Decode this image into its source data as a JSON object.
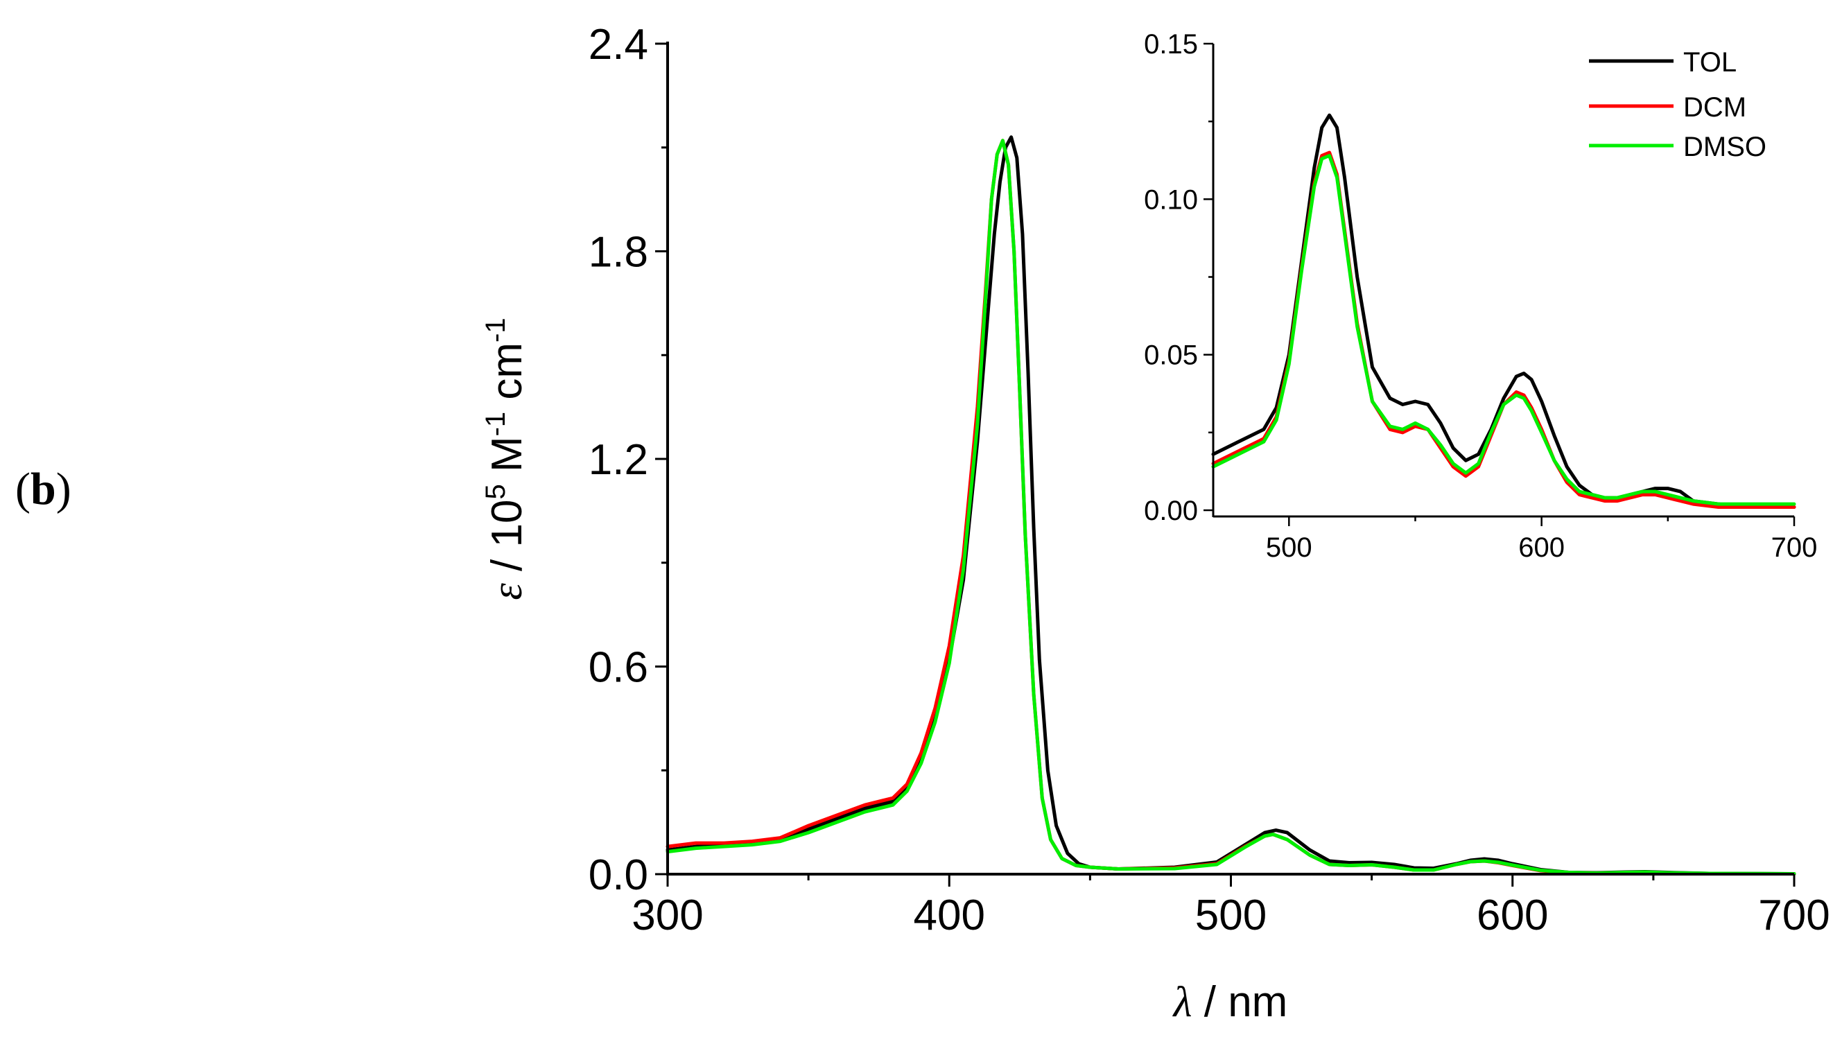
{
  "panel_label": {
    "open": "(",
    "letter": "b",
    "close": ")"
  },
  "colors": {
    "TOL": "#000000",
    "DCM": "#ff0000",
    "DMSO": "#00ee00",
    "axis": "#000000",
    "background": "#ffffff"
  },
  "chart_data": [
    {
      "type": "line",
      "role": "main",
      "title": "",
      "xlabel": {
        "symbol": "λ",
        "rest": " / nm"
      },
      "ylabel": {
        "symbol": "ε",
        "before_sup1": " / 10",
        "sup1": "5",
        "mid": " M",
        "sup2": "-1",
        "after": " cm",
        "sup3": "-1"
      },
      "xlim": [
        300,
        700
      ],
      "ylim": [
        0.0,
        2.4
      ],
      "xticks": [
        300,
        400,
        500,
        600,
        700
      ],
      "xtick_labels": [
        "300",
        "400",
        "500",
        "600",
        "700"
      ],
      "yticks": [
        0.0,
        0.6,
        1.2,
        1.8,
        2.4
      ],
      "ytick_labels": [
        "0.0",
        "0.6",
        "1.2",
        "1.8",
        "2.4"
      ],
      "series": [
        {
          "name": "TOL",
          "x": [
            300,
            310,
            320,
            330,
            340,
            350,
            360,
            370,
            380,
            385,
            390,
            395,
            400,
            405,
            410,
            413,
            416,
            418,
            420,
            422,
            424,
            426,
            428,
            430,
            432,
            435,
            438,
            442,
            446,
            450,
            460,
            480,
            495,
            505,
            512,
            516,
            520,
            528,
            535,
            542,
            550,
            558,
            565,
            572,
            580,
            585,
            590,
            595,
            600,
            610,
            620,
            630,
            640,
            647,
            655,
            670,
            700
          ],
          "y": [
            0.07,
            0.08,
            0.085,
            0.09,
            0.1,
            0.13,
            0.16,
            0.19,
            0.21,
            0.25,
            0.33,
            0.45,
            0.62,
            0.85,
            1.25,
            1.55,
            1.85,
            2.0,
            2.1,
            2.13,
            2.07,
            1.85,
            1.45,
            1.0,
            0.62,
            0.3,
            0.14,
            0.06,
            0.03,
            0.02,
            0.015,
            0.02,
            0.035,
            0.085,
            0.12,
            0.127,
            0.12,
            0.07,
            0.038,
            0.033,
            0.034,
            0.028,
            0.018,
            0.017,
            0.03,
            0.04,
            0.044,
            0.04,
            0.03,
            0.013,
            0.005,
            0.004,
            0.006,
            0.007,
            0.005,
            0.002,
            0.001
          ]
        },
        {
          "name": "DCM",
          "x": [
            300,
            310,
            320,
            330,
            340,
            350,
            360,
            370,
            380,
            385,
            390,
            395,
            400,
            405,
            410,
            413,
            415,
            417,
            419,
            421,
            423,
            425,
            427,
            430,
            433,
            436,
            440,
            445,
            450,
            460,
            480,
            495,
            505,
            512,
            515,
            520,
            528,
            535,
            542,
            550,
            558,
            565,
            572,
            580,
            585,
            590,
            595,
            600,
            610,
            620,
            630,
            640,
            647,
            655,
            670,
            700
          ],
          "y": [
            0.08,
            0.09,
            0.09,
            0.095,
            0.105,
            0.14,
            0.17,
            0.2,
            0.22,
            0.26,
            0.35,
            0.48,
            0.66,
            0.92,
            1.35,
            1.7,
            1.95,
            2.08,
            2.12,
            2.05,
            1.8,
            1.4,
            0.98,
            0.52,
            0.22,
            0.1,
            0.045,
            0.025,
            0.02,
            0.015,
            0.018,
            0.03,
            0.08,
            0.11,
            0.115,
            0.1,
            0.055,
            0.028,
            0.025,
            0.027,
            0.02,
            0.012,
            0.012,
            0.028,
            0.036,
            0.038,
            0.033,
            0.025,
            0.01,
            0.004,
            0.003,
            0.004,
            0.005,
            0.003,
            0.001,
            0.001
          ]
        },
        {
          "name": "DMSO",
          "x": [
            300,
            310,
            320,
            330,
            340,
            350,
            360,
            370,
            380,
            385,
            390,
            395,
            400,
            405,
            410,
            413,
            415,
            417,
            419,
            421,
            423,
            425,
            427,
            430,
            433,
            436,
            440,
            445,
            450,
            460,
            480,
            495,
            505,
            512,
            515,
            520,
            528,
            535,
            542,
            550,
            558,
            565,
            572,
            580,
            585,
            590,
            595,
            600,
            610,
            620,
            630,
            640,
            647,
            655,
            670,
            700
          ],
          "y": [
            0.065,
            0.075,
            0.08,
            0.085,
            0.095,
            0.12,
            0.15,
            0.18,
            0.2,
            0.24,
            0.32,
            0.44,
            0.61,
            0.88,
            1.3,
            1.68,
            1.95,
            2.08,
            2.12,
            2.05,
            1.8,
            1.4,
            0.98,
            0.52,
            0.22,
            0.1,
            0.045,
            0.025,
            0.02,
            0.015,
            0.016,
            0.028,
            0.078,
            0.11,
            0.115,
            0.1,
            0.055,
            0.028,
            0.025,
            0.027,
            0.02,
            0.012,
            0.012,
            0.028,
            0.036,
            0.038,
            0.034,
            0.026,
            0.011,
            0.005,
            0.003,
            0.005,
            0.006,
            0.004,
            0.002,
            0.001
          ]
        }
      ]
    },
    {
      "type": "line",
      "role": "inset",
      "title": "",
      "xlabel": "",
      "ylabel": "",
      "xlim": [
        470,
        700
      ],
      "ylim": [
        -0.002,
        0.15
      ],
      "xticks": [
        500,
        600,
        700
      ],
      "xtick_labels": [
        "500",
        "600",
        "700"
      ],
      "yticks": [
        0.0,
        0.05,
        0.1,
        0.15
      ],
      "ytick_labels": [
        "0.00",
        "0.05",
        "0.10",
        "0.15"
      ],
      "legend": {
        "position": "top-right",
        "entries": [
          "TOL",
          "DCM",
          "DMSO"
        ]
      },
      "series": [
        {
          "name": "TOL",
          "x": [
            470,
            480,
            490,
            495,
            500,
            505,
            510,
            513,
            516,
            519,
            522,
            527,
            533,
            540,
            545,
            550,
            555,
            560,
            565,
            570,
            575,
            580,
            585,
            590,
            593,
            596,
            600,
            605,
            610,
            615,
            620,
            625,
            630,
            635,
            640,
            645,
            650,
            655,
            660,
            670,
            680,
            700
          ],
          "y": [
            0.018,
            0.022,
            0.026,
            0.033,
            0.05,
            0.08,
            0.11,
            0.123,
            0.127,
            0.123,
            0.107,
            0.075,
            0.046,
            0.036,
            0.034,
            0.035,
            0.034,
            0.028,
            0.02,
            0.016,
            0.018,
            0.026,
            0.036,
            0.043,
            0.044,
            0.042,
            0.035,
            0.024,
            0.014,
            0.008,
            0.005,
            0.004,
            0.004,
            0.005,
            0.006,
            0.007,
            0.007,
            0.006,
            0.003,
            0.002,
            0.001,
            0.001
          ]
        },
        {
          "name": "DCM",
          "x": [
            470,
            480,
            490,
            495,
            500,
            505,
            510,
            513,
            516,
            519,
            522,
            527,
            533,
            540,
            545,
            550,
            555,
            560,
            565,
            570,
            575,
            580,
            585,
            590,
            593,
            596,
            600,
            605,
            610,
            615,
            620,
            625,
            630,
            635,
            640,
            645,
            650,
            655,
            660,
            670,
            680,
            700
          ],
          "y": [
            0.015,
            0.019,
            0.023,
            0.03,
            0.048,
            0.078,
            0.105,
            0.114,
            0.115,
            0.108,
            0.09,
            0.06,
            0.035,
            0.026,
            0.025,
            0.027,
            0.026,
            0.02,
            0.014,
            0.011,
            0.014,
            0.024,
            0.034,
            0.038,
            0.037,
            0.033,
            0.026,
            0.016,
            0.009,
            0.005,
            0.004,
            0.003,
            0.003,
            0.004,
            0.005,
            0.005,
            0.004,
            0.003,
            0.002,
            0.001,
            0.001,
            0.001
          ]
        },
        {
          "name": "DMSO",
          "x": [
            470,
            480,
            490,
            495,
            500,
            505,
            510,
            513,
            516,
            519,
            522,
            527,
            533,
            540,
            545,
            550,
            555,
            560,
            565,
            570,
            575,
            580,
            585,
            590,
            593,
            596,
            600,
            605,
            610,
            615,
            620,
            625,
            630,
            635,
            640,
            645,
            650,
            655,
            660,
            670,
            680,
            700
          ],
          "y": [
            0.014,
            0.018,
            0.022,
            0.029,
            0.047,
            0.077,
            0.104,
            0.113,
            0.114,
            0.107,
            0.089,
            0.059,
            0.035,
            0.027,
            0.026,
            0.028,
            0.026,
            0.021,
            0.015,
            0.012,
            0.015,
            0.025,
            0.034,
            0.037,
            0.036,
            0.032,
            0.025,
            0.016,
            0.01,
            0.006,
            0.005,
            0.004,
            0.004,
            0.005,
            0.006,
            0.006,
            0.005,
            0.004,
            0.003,
            0.002,
            0.002,
            0.002
          ]
        }
      ]
    }
  ]
}
